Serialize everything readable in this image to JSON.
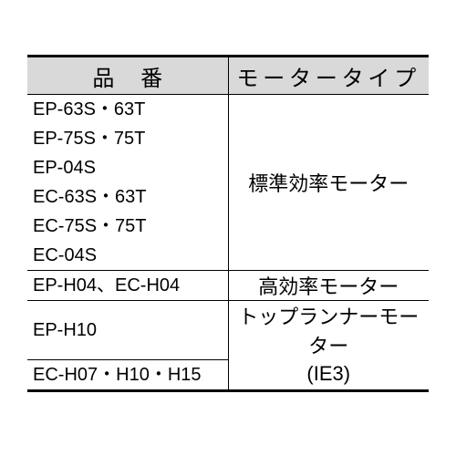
{
  "table": {
    "border_color": "#000000",
    "header_bg": "#d9d9d9",
    "text_color": "#000000",
    "columns": [
      "品番",
      "モータータイプ"
    ],
    "group1_models": [
      "EP-63S・63T",
      "EP-75S・75T",
      "EP-04S",
      "EC-63S・63T",
      "EC-75S・75T",
      "EC-04S"
    ],
    "group1_motor": "標準効率モーター",
    "row2_model": "EP-H04、EC-H04",
    "row2_motor": "高効率モーター",
    "row3_model": "EP-H10",
    "row3_motor_line1": "トップランナーモーター",
    "row4_model": "EC-H07・H10・H15",
    "row4_motor_line2": "(IE3)"
  }
}
